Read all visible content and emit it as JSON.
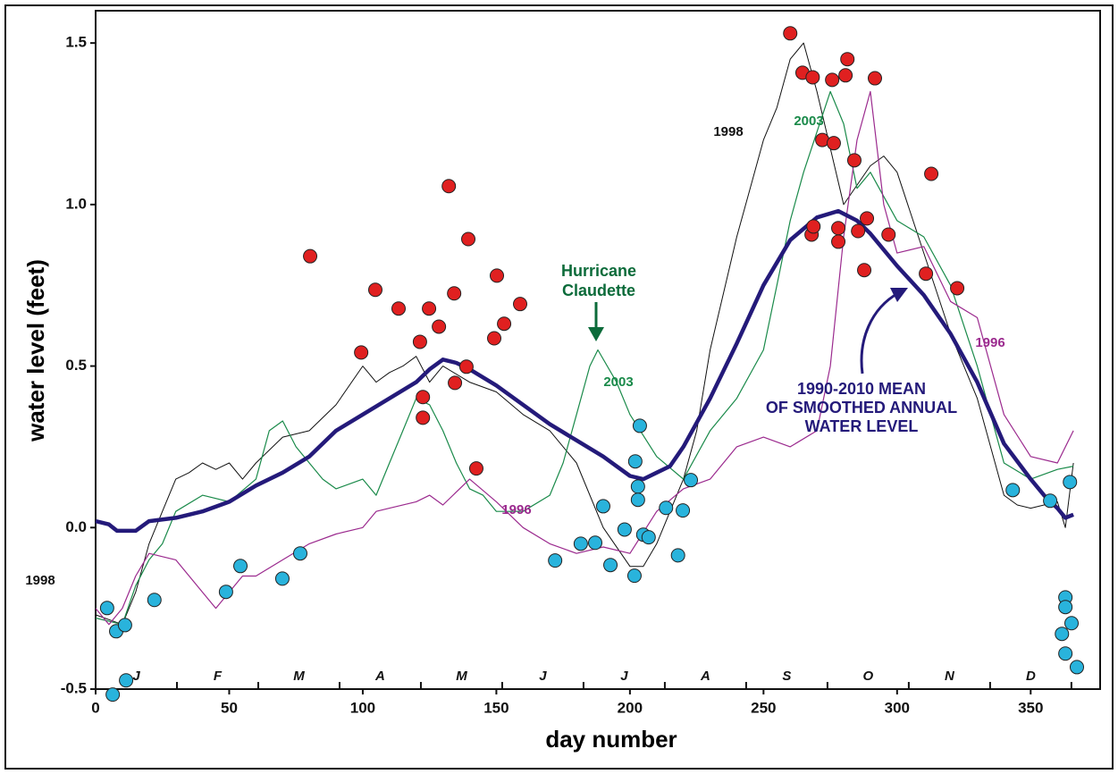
{
  "chart_data": {
    "type": "line",
    "xlabel": "day number",
    "ylabel": "water level (feet)",
    "xlim": [
      0,
      376
    ],
    "ylim": [
      -0.5,
      1.6
    ],
    "xticks": [
      0,
      50,
      100,
      150,
      200,
      250,
      300,
      350
    ],
    "yticks": [
      -0.5,
      {
        "value": 0,
        "label": "0.0"
      },
      0.5,
      {
        "value": 1,
        "label": "1.0"
      },
      1.5
    ],
    "months": [
      "J",
      "F",
      "M",
      "A",
      "M",
      "J",
      "J",
      "A",
      "S",
      "O",
      "N",
      "D"
    ],
    "series": [
      {
        "name": "1998",
        "color": "#111111",
        "x": [
          0,
          10,
          15,
          20,
          25,
          30,
          35,
          40,
          45,
          50,
          55,
          60,
          70,
          80,
          90,
          100,
          105,
          110,
          115,
          120,
          125,
          130,
          140,
          150,
          160,
          170,
          180,
          190,
          200,
          205,
          210,
          220,
          225,
          230,
          240,
          245,
          250,
          255,
          260,
          265,
          270,
          280,
          290,
          295,
          300,
          310,
          320,
          330,
          340,
          345,
          350,
          360,
          363,
          366
        ],
        "values": [
          -0.27,
          -0.3,
          -0.2,
          -0.05,
          0.05,
          0.15,
          0.17,
          0.2,
          0.18,
          0.2,
          0.15,
          0.2,
          0.28,
          0.3,
          0.38,
          0.5,
          0.45,
          0.48,
          0.5,
          0.53,
          0.45,
          0.5,
          0.45,
          0.42,
          0.35,
          0.3,
          0.2,
          0,
          -0.12,
          -0.12,
          -0.05,
          0.15,
          0.3,
          0.55,
          0.9,
          1.05,
          1.2,
          1.3,
          1.45,
          1.5,
          1.35,
          1,
          1.12,
          1.15,
          1.1,
          0.85,
          0.6,
          0.4,
          0.1,
          0.07,
          0.06,
          0.08,
          0,
          0.2
        ]
      },
      {
        "name": "2003",
        "color": "#1a8a4a",
        "x": [
          0,
          10,
          15,
          20,
          25,
          30,
          40,
          50,
          60,
          65,
          70,
          75,
          80,
          85,
          90,
          100,
          105,
          110,
          115,
          120,
          125,
          130,
          135,
          140,
          145,
          150,
          160,
          170,
          175,
          180,
          185,
          188,
          195,
          200,
          210,
          220,
          230,
          240,
          250,
          255,
          260,
          265,
          275,
          280,
          285,
          290,
          300,
          310,
          320,
          330,
          340,
          350,
          360,
          366
        ],
        "values": [
          -0.28,
          -0.3,
          -0.18,
          -0.1,
          -0.05,
          0.05,
          0.1,
          0.08,
          0.15,
          0.3,
          0.33,
          0.25,
          0.2,
          0.15,
          0.12,
          0.15,
          0.1,
          0.2,
          0.3,
          0.4,
          0.38,
          0.3,
          0.2,
          0.12,
          0.1,
          0.05,
          0.05,
          0.1,
          0.2,
          0.35,
          0.5,
          0.55,
          0.45,
          0.35,
          0.22,
          0.15,
          0.3,
          0.4,
          0.55,
          0.75,
          0.95,
          1.1,
          1.35,
          1.25,
          1.05,
          1.1,
          0.95,
          0.9,
          0.75,
          0.5,
          0.2,
          0.15,
          0.18,
          0.19
        ]
      },
      {
        "name": "1996",
        "color": "#9b2a8e",
        "x": [
          0,
          5,
          10,
          15,
          20,
          30,
          40,
          45,
          55,
          60,
          70,
          80,
          90,
          100,
          105,
          110,
          120,
          125,
          130,
          140,
          150,
          160,
          170,
          180,
          190,
          200,
          210,
          220,
          230,
          240,
          250,
          260,
          270,
          275,
          280,
          285,
          290,
          295,
          300,
          310,
          320,
          330,
          340,
          350,
          360,
          366
        ],
        "values": [
          -0.25,
          -0.3,
          -0.25,
          -0.15,
          -0.08,
          -0.1,
          -0.2,
          -0.25,
          -0.15,
          -0.15,
          -0.1,
          -0.05,
          -0.02,
          0,
          0.05,
          0.06,
          0.08,
          0.1,
          0.07,
          0.15,
          0.08,
          0,
          -0.05,
          -0.08,
          -0.06,
          -0.08,
          0.05,
          0.12,
          0.15,
          0.25,
          0.28,
          0.25,
          0.3,
          0.5,
          0.9,
          1.2,
          1.35,
          1,
          0.85,
          0.87,
          0.7,
          0.65,
          0.35,
          0.22,
          0.2,
          0.3
        ]
      },
      {
        "color": "#241a7a",
        "x": [
          0,
          5,
          8,
          15,
          20,
          30,
          40,
          50,
          60,
          70,
          80,
          90,
          100,
          110,
          120,
          125,
          130,
          135,
          140,
          150,
          160,
          170,
          180,
          190,
          200,
          205,
          210,
          215,
          220,
          230,
          240,
          250,
          260,
          270,
          278,
          285,
          290,
          300,
          310,
          320,
          330,
          340,
          350,
          355,
          360,
          363,
          366
        ],
        "values": [
          0.02,
          0.01,
          -0.01,
          -0.01,
          0.02,
          0.03,
          0.05,
          0.08,
          0.13,
          0.17,
          0.22,
          0.3,
          0.35,
          0.4,
          0.45,
          0.49,
          0.52,
          0.51,
          0.49,
          0.44,
          0.38,
          0.32,
          0.27,
          0.22,
          0.16,
          0.15,
          0.17,
          0.19,
          0.25,
          0.4,
          0.57,
          0.75,
          0.89,
          0.96,
          0.98,
          0.95,
          0.91,
          0.81,
          0.72,
          0.6,
          0.45,
          0.26,
          0.15,
          0.1,
          0.06,
          0.03,
          0.04
        ]
      }
    ],
    "points": [
      {
        "color": "#e02020",
        "x": [
          80.3,
          104.7,
          113.4,
          99.4,
          121.4,
          124.8,
          128.5,
          132.2,
          134.2,
          139.5,
          150.2,
          149.2,
          122.5,
          122.5,
          138.8,
          134.5,
          142.5,
          152.9,
          158.9,
          260,
          264.6,
          268.4,
          275.7,
          280.7,
          281.4,
          291.7,
          272,
          276.3,
          284,
          312.8,
          268,
          268.7,
          278,
          278,
          285.4,
          288.7,
          296.8,
          287.7,
          310.8,
          322.5
        ],
        "values": [
          0.84,
          0.736,
          0.678,
          0.542,
          0.575,
          0.678,
          0.622,
          1.057,
          0.725,
          0.893,
          0.78,
          0.586,
          0.404,
          0.34,
          0.498,
          0.448,
          0.183,
          0.631,
          0.692,
          1.53,
          1.408,
          1.394,
          1.386,
          1.4,
          1.45,
          1.391,
          1.2,
          1.19,
          1.137,
          1.095,
          0.907,
          0.932,
          0.927,
          0.885,
          0.918,
          0.957,
          0.907,
          0.797,
          0.786,
          0.741
        ]
      },
      {
        "color": "#29b3dc",
        "x": [
          4.3,
          7.7,
          11,
          22,
          11.4,
          6.4,
          48.8,
          54.2,
          69.9,
          76.6,
          172,
          181.6,
          187,
          190,
          192.7,
          198,
          201.7,
          202,
          203.7,
          203,
          203,
          205,
          207,
          213.5,
          218,
          219.8,
          222.8,
          343.3,
          357.3,
          364.7,
          363,
          363,
          365.3,
          361.7,
          363,
          367.3
        ],
        "values": [
          -0.249,
          -0.321,
          -0.302,
          -0.224,
          -0.473,
          -0.517,
          -0.199,
          -0.119,
          -0.158,
          -0.08,
          -0.102,
          -0.05,
          -0.047,
          0.066,
          -0.116,
          -0.006,
          -0.149,
          0.205,
          0.315,
          0.127,
          0.086,
          -0.022,
          -0.03,
          0.061,
          -0.086,
          0.053,
          0.147,
          0.116,
          0.083,
          0.141,
          -0.216,
          -0.246,
          -0.296,
          -0.329,
          -0.39,
          -0.432
        ]
      }
    ],
    "annotations": {
      "hurricane": [
        "Hurricane",
        "Claudette"
      ],
      "mean": [
        "1990-2010 MEAN",
        "OF SMOOTHED ANNUAL",
        "WATER LEVEL"
      ]
    }
  }
}
